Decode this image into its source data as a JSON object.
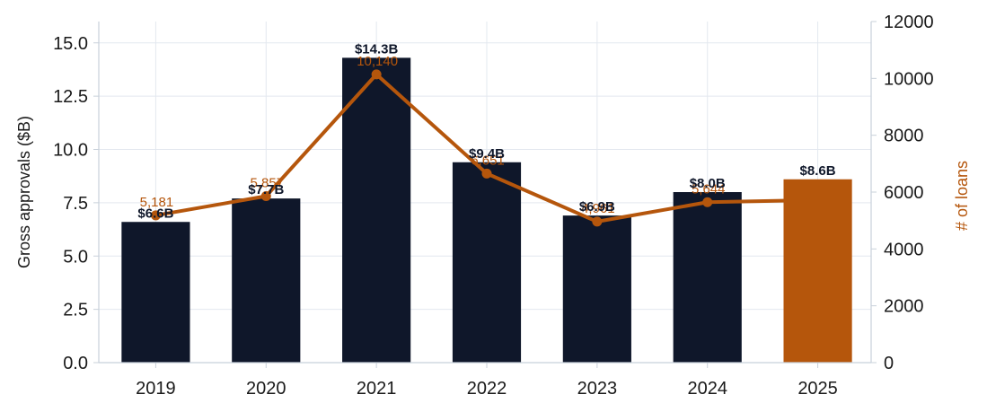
{
  "chart_data": {
    "type": "bar",
    "categories": [
      "2019",
      "2020",
      "2021",
      "2022",
      "2023",
      "2024",
      "2025"
    ],
    "series": [
      {
        "values": [
          6.6,
          7.7,
          14.3,
          9.4,
          6.9,
          8.0,
          8.6
        ],
        "labels": [
          "$6.6B",
          "$7.7B",
          "$14.3B",
          "$9.4B",
          "$6.9B",
          "$8.0B",
          "$8.6B"
        ],
        "axis": "left",
        "chart_type": "bar",
        "color": "#0f172a",
        "highlight_color": "#b5560c",
        "highlight_category": "2025"
      },
      {
        "values": [
          5181,
          5857,
          10140,
          6651,
          4961,
          5644,
          5720
        ],
        "labels": [
          "5,181",
          "5,857",
          "10,140",
          "6,651",
          "4,961",
          "5,644",
          ""
        ],
        "axis": "right",
        "chart_type": "line",
        "color": "#b5560c"
      }
    ],
    "ylabel": "Gross approvals ($B)",
    "y2label": "# of loans",
    "ylim": [
      0,
      16
    ],
    "y2lim": [
      0,
      12000
    ],
    "yticks": [
      "0.0",
      "2.5",
      "5.0",
      "7.5",
      "10.0",
      "12.5",
      "15.0"
    ],
    "y2ticks": [
      "0",
      "2000",
      "4000",
      "6000",
      "8000",
      "10000",
      "12000"
    ],
    "grid": true,
    "legend": "none"
  }
}
